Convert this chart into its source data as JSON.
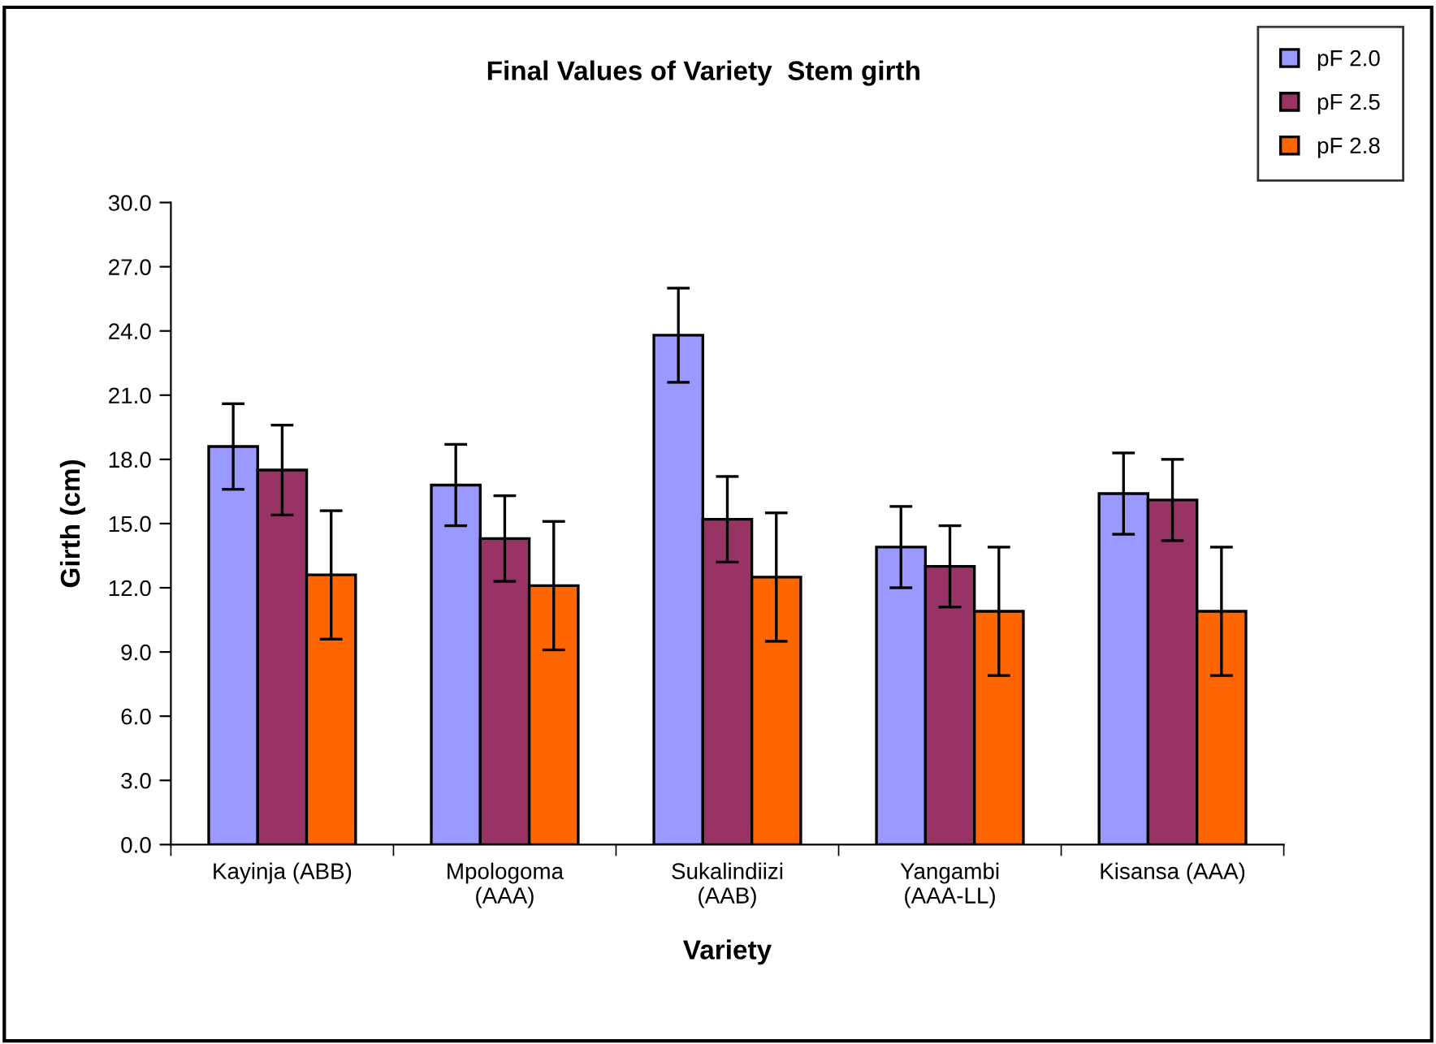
{
  "chart_data": {
    "type": "bar",
    "title": "Final Values of Variety  Stem girth",
    "xlabel": "Variety",
    "ylabel": "Girth (cm)",
    "categories": [
      "Kayinja (ABB)",
      "Mpologoma\n(AAA)",
      "Sukalindiizi\n(AAB)",
      "Yangambi\n(AAA-LL)",
      "Kisansa (AAA)"
    ],
    "series": [
      {
        "name": "pF 2.0",
        "color": "#9999ff",
        "values": [
          18.6,
          16.8,
          23.8,
          13.9,
          16.4
        ],
        "errors": [
          2.0,
          1.9,
          2.2,
          1.9,
          1.9
        ]
      },
      {
        "name": "pF 2.5",
        "color": "#993366",
        "values": [
          17.5,
          14.3,
          15.2,
          13.0,
          16.1
        ],
        "errors": [
          2.1,
          2.0,
          2.0,
          1.9,
          1.9
        ]
      },
      {
        "name": "pF 2.8",
        "color": "#ff6600",
        "values": [
          12.6,
          12.1,
          12.5,
          10.9,
          10.9
        ],
        "errors": [
          3.0,
          3.0,
          3.0,
          3.0,
          3.0
        ]
      }
    ],
    "ylim": [
      0,
      30
    ],
    "yticks": [
      {
        "value": 0,
        "label": "0.0"
      },
      {
        "value": 3,
        "label": "3.0"
      },
      {
        "value": 6,
        "label": "6.0"
      },
      {
        "value": 9,
        "label": "9.0"
      },
      {
        "value": 12,
        "label": "12.0"
      },
      {
        "value": 15,
        "label": "15.0"
      },
      {
        "value": 18,
        "label": "18.0"
      },
      {
        "value": 21,
        "label": "21.0"
      },
      {
        "value": 24,
        "label": "24.0"
      },
      {
        "value": 27,
        "label": "27.0"
      },
      {
        "value": 30,
        "label": "30.0"
      }
    ],
    "grid": false,
    "legend": "top right"
  }
}
